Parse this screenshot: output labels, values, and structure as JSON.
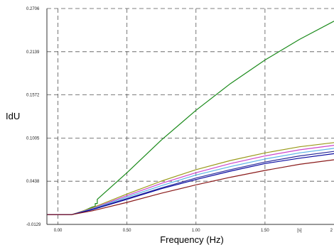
{
  "chart_data": {
    "type": "line",
    "title": "",
    "xlabel": "Frequency (Hz)",
    "ylabel": "IdU",
    "xlim": [
      -0.08,
      2.0
    ],
    "ylim": [
      -0.0129,
      0.2706
    ],
    "grid": true,
    "x_ticks": [
      {
        "value": 0.0,
        "label": "0.00"
      },
      {
        "value": 0.5,
        "label": "0.50"
      },
      {
        "value": 1.0,
        "label": "1.00"
      },
      {
        "value": 1.5,
        "label": "1.50"
      },
      {
        "value": 1.75,
        "label": "[s]"
      },
      {
        "value": 2.0,
        "label": "2"
      }
    ],
    "y_ticks": [
      {
        "value": -0.0129,
        "label": "-0.0129"
      },
      {
        "value": 0.0438,
        "label": "0.0438"
      },
      {
        "value": 0.1005,
        "label": "0.1005"
      },
      {
        "value": 0.1572,
        "label": "0.1572"
      },
      {
        "value": 0.2139,
        "label": "0.2139"
      },
      {
        "value": 0.2706,
        "label": "0.2706"
      }
    ],
    "series": [
      {
        "color": "#1a8a1a",
        "x": [
          -0.08,
          0.1,
          0.15,
          0.2,
          0.25,
          0.27,
          0.27,
          0.285,
          0.285,
          0.5,
          0.75,
          1.0,
          1.25,
          1.5,
          1.75,
          2.0
        ],
        "y": [
          0.0,
          0.0,
          0.002,
          0.006,
          0.01,
          0.011,
          0.0145,
          0.0145,
          0.02,
          0.055,
          0.098,
          0.137,
          0.172,
          0.203,
          0.23,
          0.254
        ]
      },
      {
        "color": "#9a9a1a",
        "x": [
          -0.08,
          0.1,
          0.25,
          0.5,
          0.75,
          1.0,
          1.25,
          1.5,
          1.75,
          2.0
        ],
        "y": [
          0.0,
          0.0,
          0.009,
          0.027,
          0.044,
          0.059,
          0.071,
          0.081,
          0.089,
          0.0945
        ]
      },
      {
        "color": "#cc44cc",
        "x": [
          -0.08,
          0.1,
          0.25,
          0.5,
          0.75,
          1.0,
          1.25,
          1.5,
          1.75,
          2.0
        ],
        "y": [
          0.0,
          0.0,
          0.008,
          0.025,
          0.041,
          0.055,
          0.067,
          0.077,
          0.085,
          0.091
        ]
      },
      {
        "color": "#5ab4e6",
        "x": [
          -0.08,
          0.1,
          0.25,
          0.5,
          0.75,
          1.0,
          1.25,
          1.5,
          1.75,
          2.0
        ],
        "y": [
          0.0,
          0.0,
          0.0075,
          0.023,
          0.038,
          0.052,
          0.063,
          0.073,
          0.081,
          0.087
        ]
      },
      {
        "color": "#2b2b9a",
        "x": [
          -0.08,
          0.1,
          0.25,
          0.5,
          0.75,
          1.0,
          1.25,
          1.5,
          1.75,
          2.0
        ],
        "y": [
          0.0,
          0.0,
          0.007,
          0.021,
          0.035,
          0.048,
          0.059,
          0.069,
          0.077,
          0.083
        ]
      },
      {
        "color": "#0a0aa0",
        "x": [
          -0.08,
          0.1,
          0.25,
          0.5,
          0.75,
          1.0,
          1.25,
          1.5,
          1.75,
          2.0
        ],
        "y": [
          0.0,
          0.0,
          0.0065,
          0.02,
          0.034,
          0.046,
          0.057,
          0.067,
          0.074,
          0.08
        ]
      },
      {
        "color": "#8a1a1a",
        "x": [
          -0.08,
          0.1,
          0.25,
          0.5,
          0.75,
          1.0,
          1.25,
          1.5,
          1.75,
          2.0
        ],
        "y": [
          0.0,
          0.0,
          0.005,
          0.016,
          0.028,
          0.039,
          0.049,
          0.058,
          0.066,
          0.072
        ]
      }
    ]
  }
}
